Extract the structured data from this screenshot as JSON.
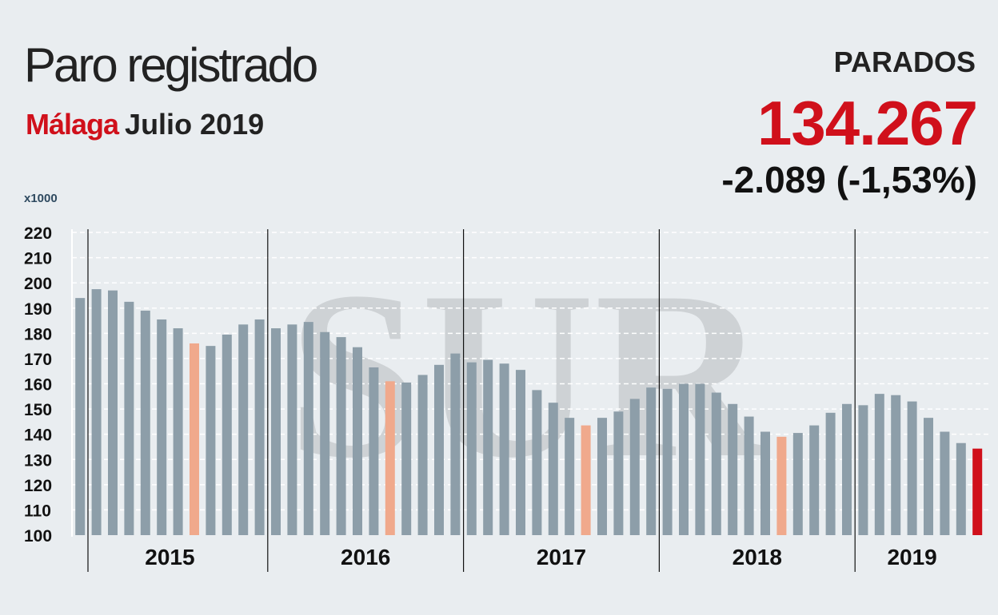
{
  "header": {
    "title": "Paro registrado",
    "city": "Málaga",
    "period": "Julio 2019"
  },
  "kpi": {
    "label": "PARADOS",
    "value": "134.267",
    "change": "-2.089 (-1,53%)"
  },
  "unit_label": "x1000",
  "watermark": "SUR",
  "colors": {
    "bar": "#8d9ea9",
    "highlight_july": "#f0a98c",
    "current": "#d0101b",
    "accent": "#d0101b"
  },
  "chart_data": {
    "type": "bar",
    "title": "Paro registrado",
    "ylim": [
      100,
      220
    ],
    "yticks": [
      100,
      110,
      120,
      130,
      140,
      150,
      160,
      170,
      180,
      190,
      200,
      210,
      220
    ],
    "grid": true,
    "years": [
      "2015",
      "2016",
      "2017",
      "2018",
      "2019"
    ],
    "months_per_year": [
      12,
      12,
      12,
      12,
      7
    ],
    "values": [
      194,
      197.5,
      197,
      192.5,
      189,
      185.5,
      182,
      176,
      175,
      179.5,
      183.5,
      185.5,
      182,
      183.5,
      184.5,
      180.5,
      178.5,
      174.5,
      166.5,
      161,
      160.5,
      163.5,
      167.5,
      172,
      168.5,
      169.5,
      168,
      165.5,
      157.5,
      152.5,
      146.5,
      143.5,
      146.5,
      149,
      154,
      158.5,
      158,
      160,
      160,
      156.5,
      152,
      147,
      141,
      139,
      140.5,
      143.5,
      148.5,
      152,
      151.5,
      156,
      155.5,
      153,
      146.5,
      141,
      136.5,
      134.3
    ],
    "highlight_indices": [
      7,
      19,
      31,
      43
    ],
    "current_index": 55
  }
}
